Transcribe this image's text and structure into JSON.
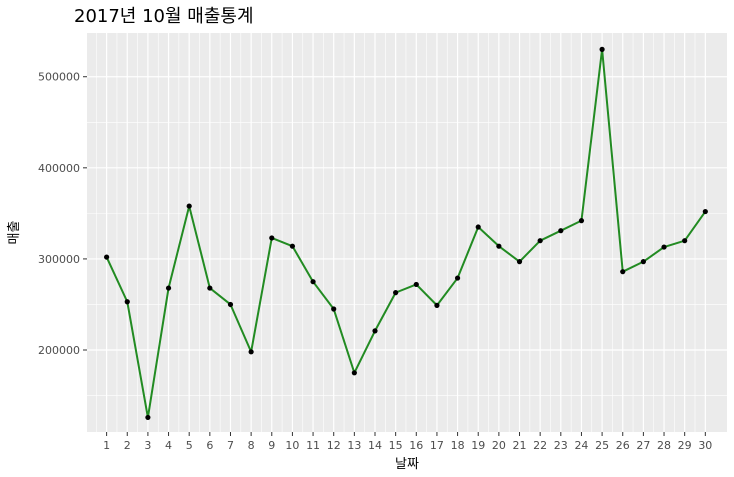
{
  "chart_data": {
    "type": "line",
    "title": "2017년 10월 매출통계",
    "xlabel": "날짜",
    "ylabel": "매출",
    "x": [
      1,
      2,
      3,
      4,
      5,
      6,
      7,
      8,
      9,
      10,
      11,
      12,
      13,
      14,
      15,
      16,
      17,
      18,
      19,
      20,
      21,
      22,
      23,
      24,
      25,
      26,
      27,
      28,
      29,
      30
    ],
    "series": [
      {
        "values": [
          302000,
          253000,
          126000,
          268000,
          358000,
          268000,
          250000,
          198000,
          323000,
          314000,
          275000,
          245000,
          175000,
          221000,
          263000,
          272000,
          249000,
          279000,
          335000,
          314000,
          297000,
          320000,
          331000,
          342000,
          530000,
          286000,
          297000,
          313000,
          320000,
          352000
        ]
      }
    ],
    "ylim": [
      110000,
      548000
    ],
    "xlim": [
      0.05,
      31.05
    ],
    "yticks": [
      200000,
      300000,
      400000,
      500000
    ],
    "grid": true,
    "line_color": "#228B22",
    "point_color": "#000000",
    "panel_color": "#ebebeb",
    "grid_color": "#ffffff"
  }
}
